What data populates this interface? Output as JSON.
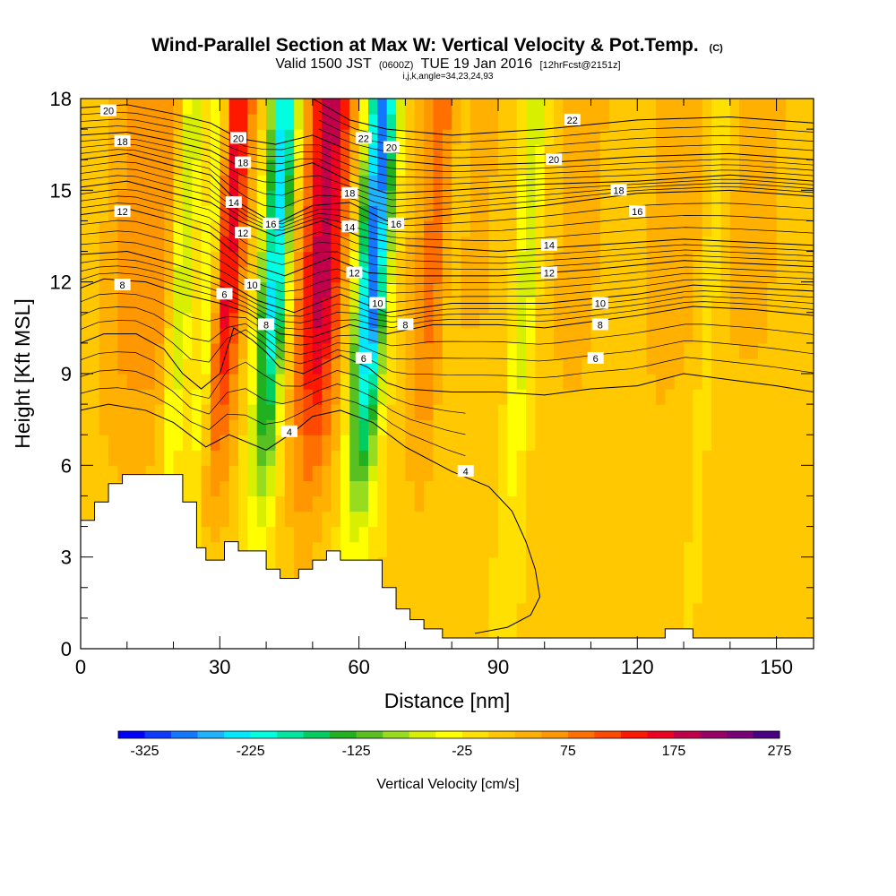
{
  "title": {
    "line1": "Wind-Parallel Section at Max W: Vertical Velocity & Pot.Temp.",
    "line1_mark": "(C)",
    "line2_pre": "Valid 1500 JST",
    "line2_utc": "(0600Z)",
    "line2_mid": "TUE 19 Jan 2016",
    "line2_fcst": "[12hrFcst@2151z]",
    "line3": "i,j,k,angle=34,23,24,93"
  },
  "chart_data": {
    "type": "heatmap",
    "title": "Wind-Parallel Section at Max W: Vertical Velocity & Pot.Temp.",
    "xlabel": "Distance [nm]",
    "ylabel": "Height [Kft MSL]",
    "xlim": [
      0,
      158
    ],
    "ylim": [
      0,
      18
    ],
    "x_ticks": [
      0,
      30,
      60,
      90,
      120,
      150
    ],
    "y_ticks": [
      0,
      3,
      6,
      9,
      12,
      15,
      18
    ],
    "grid": false,
    "background_w": 0,
    "updrafts": [
      {
        "x": 4,
        "amp": 40,
        "width": 6
      },
      {
        "x": 12,
        "amp": 60,
        "width": 7
      },
      {
        "x": 27,
        "amp": 160,
        "width": 3.5
      },
      {
        "x": 47,
        "amp": 190,
        "width": 5
      },
      {
        "x": 71,
        "amp": 80,
        "width": 5
      },
      {
        "x": 82,
        "amp": 25,
        "width": 8
      },
      {
        "x": 102,
        "amp": 35,
        "width": 7
      },
      {
        "x": 122,
        "amp": 35,
        "width": 8
      },
      {
        "x": 140,
        "amp": 30,
        "width": 10
      }
    ],
    "downdrafts": [
      {
        "x": 17,
        "amp": -110,
        "width": 2.5
      },
      {
        "x": 23,
        "amp": -90,
        "width": 2
      },
      {
        "x": 37,
        "amp": -240,
        "width": 3
      },
      {
        "x": 58,
        "amp": -300,
        "width": 3.2
      },
      {
        "x": 75,
        "amp": -40,
        "width": 2
      },
      {
        "x": 91,
        "amp": -80,
        "width": 2.5
      },
      {
        "x": 131,
        "amp": -40,
        "width": 2
      }
    ],
    "terrain": {
      "x": [
        0,
        3,
        3,
        6,
        6,
        9,
        9,
        12,
        12,
        22,
        22,
        25,
        25,
        27,
        27,
        31,
        31,
        34,
        34,
        40,
        40,
        43,
        43,
        47,
        47,
        50,
        50,
        53,
        53,
        56,
        56,
        65,
        65,
        68,
        68,
        71,
        71,
        74,
        74,
        78,
        78,
        84,
        84,
        91,
        91,
        126,
        126,
        132,
        132,
        158
      ],
      "y": [
        4.2,
        4.2,
        4.8,
        4.8,
        5.4,
        5.4,
        5.7,
        5.7,
        5.7,
        5.7,
        4.8,
        4.8,
        3.3,
        3.3,
        2.9,
        2.9,
        3.5,
        3.5,
        3.2,
        3.2,
        2.6,
        2.6,
        2.3,
        2.3,
        2.6,
        2.6,
        2.9,
        2.9,
        3.2,
        3.2,
        2.9,
        2.9,
        2.0,
        2.0,
        1.3,
        1.3,
        0.95,
        0.95,
        0.65,
        0.65,
        0.35,
        0.35,
        0.35,
        0.35,
        0.35,
        0.35,
        0.65,
        0.65,
        0.35,
        0.35
      ]
    },
    "theta_contours": [
      {
        "level": 4,
        "x": [
          0,
          6,
          14,
          20,
          27,
          32,
          40,
          46,
          50,
          56,
          63,
          70,
          80,
          88,
          93,
          96,
          98,
          99,
          97,
          92,
          85
        ],
        "y": [
          7.8,
          8.0,
          7.8,
          7.4,
          6.6,
          7.0,
          6.5,
          7.1,
          7.6,
          7.8,
          7.4,
          6.6,
          5.8,
          5.3,
          4.5,
          3.5,
          2.6,
          1.7,
          1.1,
          0.7,
          0.5
        ],
        "labels": [
          [
            45,
            7.1
          ],
          [
            83,
            5.8
          ]
        ]
      },
      {
        "level": 6,
        "x": [
          0,
          5,
          12,
          18,
          22,
          26,
          30,
          33,
          37,
          40,
          43,
          48,
          56,
          62,
          66,
          70,
          80,
          90,
          100,
          110,
          120,
          130,
          140,
          150,
          158
        ],
        "y": [
          10.0,
          10.3,
          10.3,
          9.8,
          9.0,
          8.5,
          9.0,
          10.5,
          10.1,
          9.7,
          9.2,
          9.0,
          9.6,
          9.2,
          8.7,
          8.5,
          8.4,
          8.4,
          8.3,
          8.5,
          8.6,
          9.0,
          8.8,
          8.6,
          8.4
        ],
        "labels": [
          [
            31,
            11.6
          ],
          [
            61,
            9.5
          ],
          [
            111,
            9.5
          ]
        ]
      },
      {
        "level": 8,
        "x": [
          0,
          5,
          14,
          22,
          30,
          36,
          43,
          50,
          58,
          66,
          76,
          90,
          100,
          110,
          120,
          132,
          145,
          158
        ],
        "y": [
          11.8,
          12.1,
          12.0,
          11.6,
          11.3,
          11.0,
          10.3,
          10.2,
          10.6,
          10.3,
          10.6,
          10.6,
          10.5,
          10.7,
          10.9,
          11.2,
          11.1,
          10.9
        ],
        "labels": [
          [
            9,
            11.9
          ],
          [
            40,
            10.6
          ],
          [
            70,
            10.6
          ],
          [
            112,
            10.6
          ]
        ]
      },
      {
        "level": 10,
        "x": [
          0,
          10,
          20,
          30,
          38,
          46,
          56,
          66,
          80,
          100,
          120,
          132,
          158
        ],
        "y": [
          12.9,
          13.0,
          12.6,
          12.1,
          11.4,
          11.0,
          11.6,
          11.0,
          11.3,
          11.3,
          11.6,
          11.9,
          11.7
        ],
        "labels": [
          [
            37,
            11.9
          ],
          [
            64,
            11.3
          ],
          [
            112,
            11.3
          ]
        ]
      },
      {
        "level": 12,
        "x": [
          0,
          10,
          20,
          28,
          36,
          44,
          54,
          62,
          72,
          90,
          110,
          130,
          158
        ],
        "y": [
          14.2,
          14.4,
          14.0,
          13.6,
          12.6,
          12.2,
          12.8,
          12.3,
          12.2,
          12.2,
          12.4,
          12.7,
          12.5
        ],
        "labels": [
          [
            9,
            14.3
          ],
          [
            35,
            13.6
          ],
          [
            59,
            12.3
          ],
          [
            101,
            12.3
          ]
        ]
      },
      {
        "level": 14,
        "x": [
          0,
          10,
          20,
          28,
          34,
          42,
          52,
          60,
          70,
          90,
          110,
          130,
          158
        ],
        "y": [
          15.1,
          15.3,
          14.9,
          14.6,
          14.0,
          13.5,
          14.0,
          13.5,
          13.2,
          13.0,
          13.2,
          13.4,
          13.2
        ],
        "labels": [
          [
            33,
            14.6
          ],
          [
            58,
            13.8
          ],
          [
            101,
            13.2
          ]
        ]
      },
      {
        "level": 16,
        "x": [
          0,
          10,
          20,
          28,
          34,
          42,
          50,
          58,
          66,
          80,
          100,
          120,
          140,
          158
        ],
        "y": [
          16.0,
          16.2,
          15.8,
          15.5,
          14.6,
          13.9,
          14.5,
          14.6,
          14.0,
          14.2,
          14.5,
          14.9,
          15.0,
          14.8
        ],
        "labels": [
          [
            41,
            13.9
          ],
          [
            68,
            13.9
          ],
          [
            120,
            14.3
          ]
        ]
      },
      {
        "level": 18,
        "x": [
          0,
          10,
          20,
          28,
          34,
          42,
          50,
          58,
          66,
          80,
          100,
          120,
          140,
          158
        ],
        "y": [
          16.8,
          16.9,
          16.6,
          16.3,
          15.8,
          15.6,
          15.9,
          15.3,
          14.9,
          15.0,
          15.2,
          15.3,
          15.5,
          15.3
        ],
        "labels": [
          [
            9,
            16.6
          ],
          [
            35,
            15.9
          ],
          [
            58,
            14.9
          ],
          [
            116,
            15.0
          ]
        ]
      },
      {
        "level": 20,
        "x": [
          0,
          10,
          20,
          28,
          34,
          42,
          50,
          58,
          66,
          80,
          100,
          120,
          140,
          158
        ],
        "y": [
          17.7,
          17.8,
          17.5,
          17.2,
          16.7,
          16.5,
          16.8,
          16.3,
          16.0,
          15.8,
          15.9,
          16.1,
          16.2,
          16.0
        ],
        "labels": [
          [
            6,
            17.6
          ],
          [
            34,
            16.7
          ],
          [
            67,
            16.4
          ],
          [
            102,
            16.0
          ]
        ]
      },
      {
        "level": 22,
        "x": [
          50,
          58,
          66,
          80,
          100,
          120,
          140,
          158
        ],
        "y": [
          18.0,
          17.3,
          17.0,
          16.8,
          17.0,
          17.3,
          17.4,
          17.2
        ],
        "labels": [
          [
            61,
            16.7
          ],
          [
            106,
            17.3
          ]
        ]
      }
    ]
  },
  "colorbar": {
    "colors": [
      "#0000ff",
      "#0a3bff",
      "#1478ff",
      "#1eb2ff",
      "#00e9ff",
      "#00ffe0",
      "#00e6a0",
      "#00cc60",
      "#20b020",
      "#58c020",
      "#98dc20",
      "#d8f000",
      "#ffff00",
      "#ffe000",
      "#ffc800",
      "#ffb000",
      "#ff9800",
      "#ff7000",
      "#ff4800",
      "#ff1800",
      "#ee0022",
      "#c0004a",
      "#980068",
      "#780078",
      "#4a0082"
    ],
    "min": -350,
    "step": 25,
    "tick_values": [
      -325,
      -225,
      -125,
      -25,
      75,
      175,
      275
    ],
    "tick_labels": [
      "-325",
      "-225",
      "-125",
      "-25",
      "75",
      "175",
      "275"
    ],
    "title": "Vertical Velocity [cm/s]"
  }
}
